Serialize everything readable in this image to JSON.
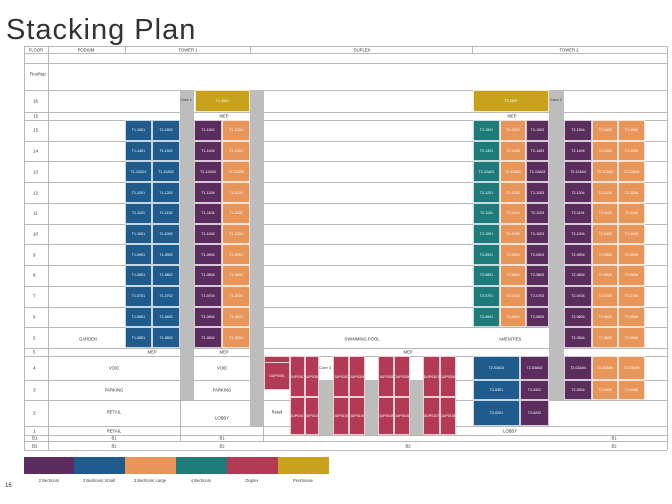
{
  "title": "Stacking Plan",
  "page_number": "16",
  "header": {
    "floor": "FLOOR",
    "podium": "PODIUM",
    "tower1": "TOWER 1",
    "duplex": "DUPLEX",
    "tower2": "TOWER 2"
  },
  "floors": [
    "Rooftop",
    "16",
    "15",
    "15",
    "14",
    "13",
    "12",
    "11",
    "10",
    "9",
    "8",
    "7",
    "6",
    "5",
    "5",
    "4",
    "3",
    "2",
    "1",
    "B1",
    "B2"
  ],
  "labels": {
    "core1": "Core 1",
    "core2": "Core 2",
    "core3": "Core 3",
    "core4": "Core 4",
    "core5": "Core 5",
    "mep": "MEP",
    "garden": "GARDEN",
    "swimming_pool": "SWIMMING POOL",
    "amenities": "AMENITIES",
    "void": "VOID",
    "parking": "PARKING",
    "retail": "RETAIL",
    "lobby": "LOBBY",
    "b1": "B1",
    "b2": "B2"
  },
  "colors": {
    "purple": "#5b2c5e",
    "blue": "#1f5b8c",
    "orange": "#e8955a",
    "teal": "#1f7a7a",
    "crimson": "#b23a55",
    "gold": "#c9a21b",
    "core": "#bdbdbd"
  },
  "legend": [
    {
      "label": "2 Bedroom",
      "color": "purple"
    },
    {
      "label": "3 Bedroom Small",
      "color": "blue"
    },
    {
      "label": "3 Bedroom Large",
      "color": "orange"
    },
    {
      "label": "4 Bedroom",
      "color": "teal"
    },
    {
      "label": "Duplex",
      "color": "crimson"
    },
    {
      "label": "Penthouse",
      "color": "gold"
    }
  ],
  "units": {
    "t1_podium_a": [
      "T1-1501",
      "T1-1401",
      "T1-12A01",
      "T1-1201",
      "T1-1101",
      "T1-1001",
      "T1-0901",
      "T1-0801",
      "T1-0701",
      "T1-0601",
      "T1-0501"
    ],
    "t1_podium_b": [
      "T1-1502",
      "T1-1402",
      "T1-12A02",
      "T1-1202",
      "T1-1102",
      "T1-1002",
      "T1-0902",
      "T1-0802",
      "T1-0702",
      "T1-0602",
      "T1-0502"
    ],
    "t1_a": [
      "T1-1504",
      "T1-1404",
      "T1-12A04",
      "T1-1204",
      "T1-1104",
      "T1-1004",
      "T1-0904",
      "T1-0804",
      "T1-0704",
      "T1-0604",
      "T1-0504"
    ],
    "t1_b": [
      "T1-1503",
      "T1-1403",
      "T1-12A03",
      "T1-1203",
      "T1-1103",
      "T1-1003",
      "T1-0903",
      "T1-0803",
      "T1-0703",
      "T1-0603",
      "T1-0503"
    ],
    "t1_penthouse": "T1-1601",
    "t2_penthouse": "T2-1601",
    "t2_a": [
      "T2-1501",
      "T2-1401",
      "T2-12A01",
      "T2-1201",
      "T2-1101",
      "T2-1001",
      "T2-0901",
      "T2-0801",
      "T2-0701",
      "T2-0601"
    ],
    "t2_b": [
      "T2-1502",
      "T2-1402",
      "T2-12A02",
      "T2-1202",
      "T2-1102",
      "T2-1002",
      "T2-0902",
      "T2-0802",
      "T2-0702",
      "T2-0602"
    ],
    "t2_c": [
      "T2-1503",
      "T2-1403",
      "T2-12A03",
      "T2-1203",
      "T2-1103",
      "T2-1003",
      "T2-0903",
      "T2-0803",
      "T2-0703",
      "T2-0603"
    ],
    "t2_d": [
      "T2-1504",
      "T2-1404",
      "T2-12A04",
      "T2-1204",
      "T2-1104",
      "T2-1004",
      "T2-0904",
      "T2-0804",
      "T2-0704",
      "T2-0604",
      "T2-0504",
      "T2-03A04",
      "T2-0304"
    ],
    "t2_e": [
      "T2-1505",
      "T2-1405",
      "T2-12A05",
      "T2-1205",
      "T2-1105",
      "T2-1005",
      "T2-0905",
      "T2-0805",
      "T2-0705",
      "T2-0605",
      "T2-0505",
      "T2-03A05",
      "T2-0305"
    ],
    "t2_f": [
      "T2-1506",
      "T2-1406",
      "T2-12A06",
      "T2-1206",
      "T2-1106",
      "T2-1006",
      "T2-0906",
      "T2-0806",
      "T2-0706",
      "T2-0606",
      "T2-0506",
      "T2-03A06",
      "T2-0306"
    ],
    "t2_low_a": [
      "T2-03A01",
      "T2-0301",
      "T2-0201"
    ],
    "t2_low_b": [
      "T2-03A02",
      "T2-0302",
      "T2-0202"
    ],
    "retail_small": "Retail",
    "dup_top": [
      "DUP0301",
      "DUP0302",
      "DUP0303",
      "DUP0304",
      "DUP0305",
      "DUP0306",
      "DUP0307",
      "DUP0308"
    ],
    "dup_bottom": [
      "DUP0101",
      "DUP0102",
      "DUP0103",
      "DUP0104",
      "DUP0105",
      "DUP0106",
      "DUP0107",
      "DUP0108"
    ]
  }
}
